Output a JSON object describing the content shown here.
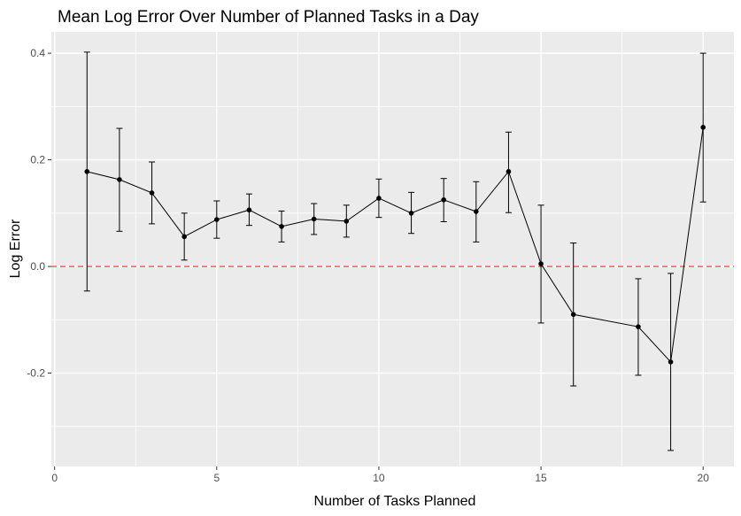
{
  "chart_data": {
    "type": "line",
    "title": "Mean Log Error Over Number of Planned Tasks in a Day",
    "xlabel": "Number of Tasks Planned",
    "ylabel": "Log Error",
    "xlim": [
      -0.1,
      20.95
    ],
    "ylim": [
      -0.375,
      0.44
    ],
    "x_ticks": [
      0,
      5,
      10,
      15,
      20
    ],
    "x_tick_labels": [
      "0",
      "5",
      "10",
      "15",
      "20"
    ],
    "y_ticks": [
      -0.2,
      0.0,
      0.2,
      0.4
    ],
    "y_tick_labels": [
      "-0.2",
      "0.0",
      "0.2",
      "0.4"
    ],
    "x_minor_ticks": [
      2.5,
      7.5,
      12.5,
      17.5
    ],
    "y_minor_ticks": [
      -0.3,
      -0.1,
      0.1,
      0.3
    ],
    "grid": true,
    "panel_background": "#ebebeb",
    "grid_color": "#ffffff",
    "line_color": "#000000",
    "point_color": "#000000",
    "reference_line": {
      "y": 0.0,
      "style": "dashed",
      "color": "#e03131"
    },
    "series": [
      {
        "x": [
          1,
          2,
          3,
          4,
          5,
          6,
          7,
          8,
          9,
          10,
          11,
          12,
          13,
          14,
          15,
          16,
          18,
          19,
          20
        ],
        "y": [
          0.178,
          0.163,
          0.138,
          0.056,
          0.088,
          0.106,
          0.075,
          0.089,
          0.085,
          0.128,
          0.1,
          0.125,
          0.103,
          0.178,
          0.005,
          -0.09,
          -0.113,
          -0.179,
          0.261
        ],
        "y_lower": [
          -0.046,
          0.066,
          0.08,
          0.012,
          0.053,
          0.077,
          0.046,
          0.06,
          0.055,
          0.092,
          0.062,
          0.084,
          0.046,
          0.101,
          -0.106,
          -0.224,
          -0.204,
          -0.345,
          0.121
        ],
        "y_upper": [
          0.402,
          0.259,
          0.196,
          0.1,
          0.123,
          0.136,
          0.104,
          0.118,
          0.115,
          0.164,
          0.139,
          0.165,
          0.159,
          0.252,
          0.115,
          0.044,
          -0.023,
          -0.013,
          0.4
        ]
      }
    ]
  }
}
